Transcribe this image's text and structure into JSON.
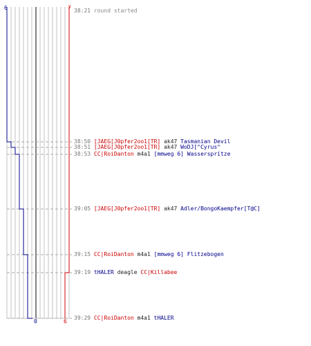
{
  "colors": {
    "team_blue": "#00008b",
    "team_red": "#cc0000",
    "grid": "#c0c0c0",
    "center": "#808080",
    "dash": "#aaaaaa"
  },
  "axis": {
    "blue_top": "6",
    "red_top": "7",
    "blue_bottom": "0",
    "red_bottom": "6"
  },
  "events": [
    {
      "time": "38:21",
      "type": "event",
      "text": "round started"
    },
    {
      "time": "38:50",
      "type": "kill",
      "killer": "[JAEG[J0pfer2oo1[TR]",
      "killer_team": "red",
      "weapon": "ak47",
      "victim": "Tasmanian Devil",
      "victim_team": "blue"
    },
    {
      "time": "38:51",
      "type": "kill",
      "killer": "[JAEG[J0pfer2oo1[TR]",
      "killer_team": "red",
      "weapon": "ak47",
      "victim": "WoDJ[^Cyrus^",
      "victim_team": "blue"
    },
    {
      "time": "38:53",
      "type": "kill",
      "killer": "CC|RoiDanton",
      "killer_team": "red",
      "weapon": "m4a1",
      "victim": "[mmweg 6] Wassersprítze",
      "victim_team": "blue"
    },
    {
      "time": "39:05",
      "type": "kill",
      "killer": "[JAEG[J0pfer2oo1[TR]",
      "killer_team": "red",
      "weapon": "ak47",
      "victim": "Adler/BongoKaempfer[T@C]",
      "victim_team": "blue"
    },
    {
      "time": "39:15",
      "type": "kill",
      "killer": "CC|RoiDanton",
      "killer_team": "red",
      "weapon": "m4a1",
      "victim": "[mmweg 6] Flitzebogen",
      "victim_team": "blue"
    },
    {
      "time": "39:19",
      "type": "kill",
      "killer": "tHALER",
      "killer_team": "blue",
      "weapon": "deagle",
      "victim": "CC|Killabee",
      "victim_team": "red"
    },
    {
      "time": "39:29",
      "type": "kill",
      "killer": "CC|RoiDanton",
      "killer_team": "red",
      "weapon": "m4a1",
      "victim": "tHALER",
      "victim_team": "blue"
    }
  ],
  "alive_steps": {
    "blue": [
      6,
      5,
      4,
      3,
      2,
      1,
      1,
      0
    ],
    "red": [
      7,
      7,
      7,
      7,
      7,
      7,
      6,
      6
    ]
  }
}
